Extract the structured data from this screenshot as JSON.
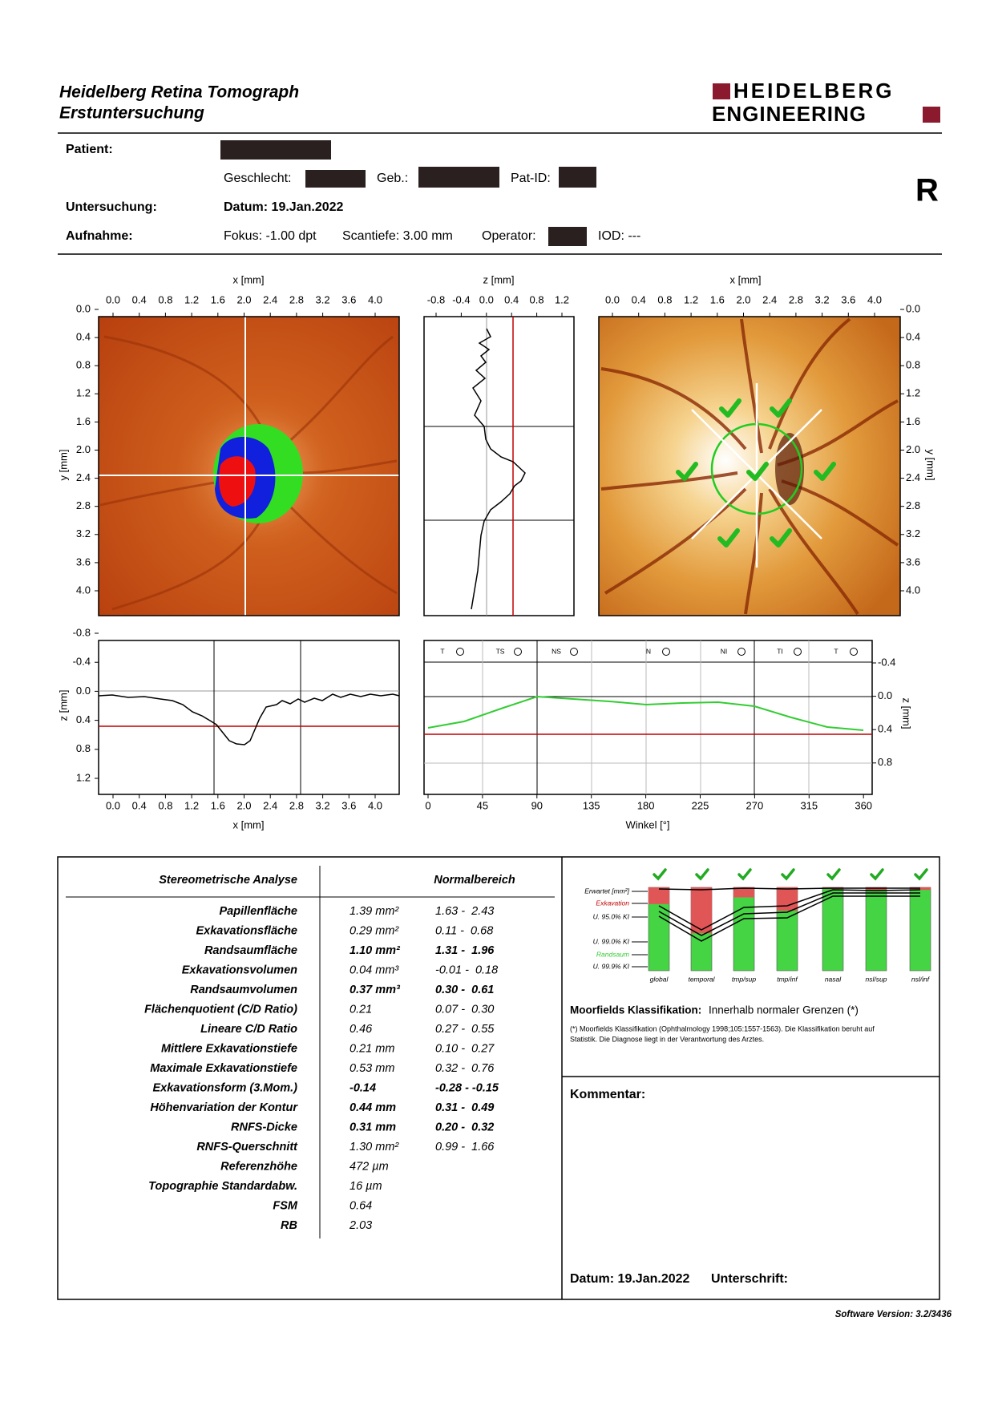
{
  "header": {
    "title": "Heidelberg Retina Tomograph",
    "subtitle": "Erstuntersuchung",
    "logo": [
      "HEIDELBERG",
      "ENGINEERING"
    ]
  },
  "patient": {
    "label": "Patient:",
    "sex_label": "Geschlecht:",
    "birth_label": "Geb.:",
    "id_label": "Pat-ID:",
    "eye": "R"
  },
  "exam": {
    "label": "Untersuchung:",
    "date": "Datum: 19.Jan.2022"
  },
  "scan": {
    "label": "Aufnahme:",
    "focus": "Fokus: -1.00 dpt",
    "depth": "Scantiefe: 3.00 mm",
    "operator_label": "Operator:",
    "iod": "IOD: ---"
  },
  "reflectance_image": {
    "x_label": "x [mm]",
    "xticks": [
      "0.0",
      "0.4",
      "0.8",
      "1.2",
      "1.6",
      "2.0",
      "2.4",
      "2.8",
      "3.2",
      "3.6",
      "4.0"
    ],
    "y_label": "y [mm]",
    "yticks": [
      "0.0",
      "0.4",
      "0.8",
      "1.2",
      "1.6",
      "2.0",
      "2.4",
      "2.8",
      "3.2",
      "3.6",
      "4.0"
    ]
  },
  "topography_image": {
    "x_label": "x [mm]",
    "xticks": [
      "0.0",
      "0.4",
      "0.8",
      "1.2",
      "1.6",
      "2.0",
      "2.4",
      "2.8",
      "3.2",
      "3.6",
      "4.0"
    ],
    "y_label": "y [mm]",
    "yticks": [
      "0.0",
      "0.4",
      "0.8",
      "1.2",
      "1.6",
      "2.0",
      "2.4",
      "2.8",
      "3.2",
      "3.6",
      "4.0"
    ]
  },
  "vertical_profile": {
    "x_label": "z [mm]",
    "xticks": [
      "-0.8",
      "-0.4",
      "0.0",
      "0.4",
      "0.8",
      "1.2"
    ]
  },
  "horizontal_profile": {
    "x_label": "x [mm]",
    "xticks": [
      "0.0",
      "0.4",
      "0.8",
      "1.2",
      "1.6",
      "2.0",
      "2.4",
      "2.8",
      "3.2",
      "3.6",
      "4.0"
    ],
    "y_label": "z [mm]",
    "yticks": [
      "-0.8",
      "-0.4",
      "0.0",
      "0.4",
      "0.8",
      "1.2"
    ]
  },
  "contour_plot": {
    "x_label": "Winkel [°]",
    "xticks": [
      "0",
      "45",
      "90",
      "135",
      "180",
      "225",
      "270",
      "315",
      "360"
    ],
    "y_label": "z [mm]",
    "yticks": [
      "-0.4",
      "0.0",
      "0.4",
      "0.8"
    ],
    "sectors": [
      "T",
      "TS",
      "NS",
      "N",
      "NI",
      "TI",
      "T"
    ]
  },
  "stereometry": {
    "title": "Stereometrische Analyse",
    "normal_title": "Normalbereich",
    "rows": [
      {
        "label": "Papillenfläche",
        "value": "1.39  mm²",
        "range": "1.63 -  2.43",
        "bold": false
      },
      {
        "label": "Exkavationsfläche",
        "value": "0.29  mm²",
        "range": "0.11 -  0.68",
        "bold": false
      },
      {
        "label": "Randsaumfläche",
        "value": "1.10  mm²",
        "range": "1.31 -  1.96",
        "bold": true
      },
      {
        "label": "Exkavationsvolumen",
        "value": "0.04  mm³",
        "range": "-0.01 -  0.18",
        "bold": false
      },
      {
        "label": "Randsaumvolumen",
        "value": "0.37  mm³",
        "range": "0.30 -  0.61",
        "bold": true
      },
      {
        "label": "Flächenquotient (C/D Ratio)",
        "value": "0.21",
        "range": "0.07 -  0.30",
        "bold": false
      },
      {
        "label": "Lineare C/D Ratio",
        "value": "0.46",
        "range": "0.27 -  0.55",
        "bold": false
      },
      {
        "label": "Mittlere Exkavationstiefe",
        "value": "0.21  mm",
        "range": "0.10 -  0.27",
        "bold": false
      },
      {
        "label": "Maximale Exkavationstiefe",
        "value": "0.53  mm",
        "range": "0.32 -  0.76",
        "bold": false
      },
      {
        "label": "Exkavationsform (3.Mom.)",
        "value": "-0.14",
        "range": "-0.28 - -0.15",
        "bold": true
      },
      {
        "label": "Höhenvariation der Kontur",
        "value": "0.44  mm",
        "range": "0.31 -  0.49",
        "bold": true
      },
      {
        "label": "RNFS-Dicke",
        "value": "0.31 mm",
        "range": "0.20 -  0.32",
        "bold": true
      },
      {
        "label": "RNFS-Querschnitt",
        "value": "1.30 mm²",
        "range": "0.99 -  1.66",
        "bold": false
      },
      {
        "label": "Referenzhöhe",
        "value": "472  µm",
        "range": "",
        "bold": false
      },
      {
        "label": "Topographie Standardabw.",
        "value": "16  µm",
        "range": "",
        "bold": false
      },
      {
        "label": "FSM",
        "value": "0.64",
        "range": "",
        "bold": false
      },
      {
        "label": "RB",
        "value": "2.03",
        "range": "",
        "bold": false
      }
    ]
  },
  "classification_chart": {
    "legend": [
      {
        "label": "Erwartet [mm²]",
        "color": "#000000"
      },
      {
        "label": "Exkavation",
        "color": "#c00000"
      },
      {
        "label": "U. 95.0% KI",
        "color": "#000000"
      },
      {
        "label": "U. 99.0% KI",
        "color": "#000000"
      },
      {
        "label": "Randsaum",
        "color": "#33cc33"
      },
      {
        "label": "U. 99.9% KI",
        "color": "#000000"
      }
    ],
    "categories": [
      "global",
      "temporal",
      "tmp/sup",
      "tmp/inf",
      "nasal",
      "nsl/sup",
      "nsl/inf"
    ],
    "cup_fraction": [
      0.2,
      0.55,
      0.12,
      0.28,
      0.02,
      0.04,
      0.03
    ]
  },
  "moorfields": {
    "label": "Moorfields Klassifikation:",
    "result": "Innerhalb normaler Grenzen (*)",
    "note": [
      "(*) Moorfields Klassifikation (Ophthalmology 1998;105:1557-1563). Die Klassifikation beruht auf",
      "Statistik. Die Diagnose liegt in der Verantwortung des Arztes."
    ]
  },
  "comment": {
    "label": "Kommentar:"
  },
  "signature": {
    "date": "Datum: 19.Jan.2022",
    "label": "Unterschrift:"
  },
  "footer": {
    "software": "Software Version: 3.2/3436"
  }
}
